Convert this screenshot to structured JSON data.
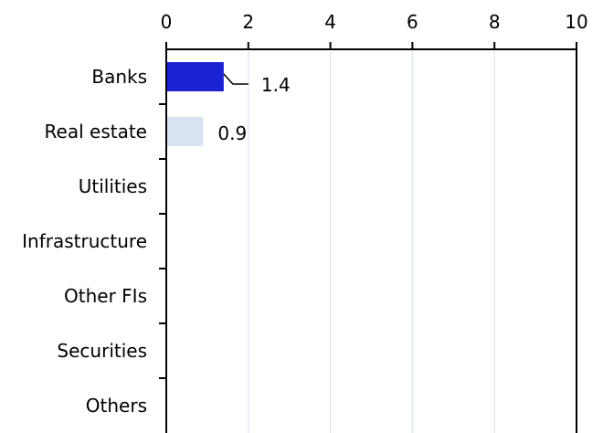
{
  "chart_data": {
    "type": "bar",
    "orientation": "horizontal",
    "title": "",
    "xlabel": "",
    "ylabel": "",
    "xlim": [
      0,
      10
    ],
    "x_ticks": [
      "0",
      "2",
      "4",
      "6",
      "8",
      "10"
    ],
    "x_tick_values": [
      0,
      2,
      4,
      6,
      8,
      10
    ],
    "x_axis_position": "top",
    "grid": "vertical",
    "categories": [
      "Banks",
      "Real estate",
      "Utilities",
      "Infrastructure",
      "Other FIs",
      "Securities",
      "Others"
    ],
    "values": [
      1.4,
      0.9,
      null,
      null,
      null,
      null,
      null
    ],
    "data_labels": [
      "1.4",
      "0.9",
      "",
      "",
      "",
      "",
      ""
    ],
    "bar_colors": [
      "#1a23d4",
      "#d9e2f3",
      "#1a23d4",
      "#1a23d4",
      "#1a23d4",
      "#1a23d4",
      "#1a23d4"
    ],
    "grid_color": "#dde3f0",
    "axis_color": "#000000"
  }
}
